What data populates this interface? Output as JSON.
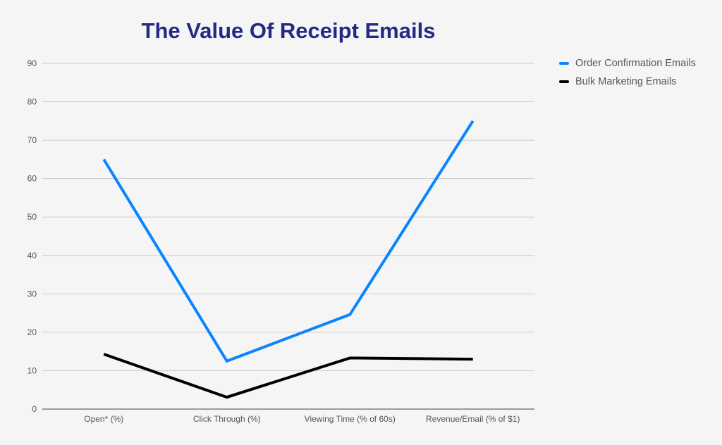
{
  "chart_data": {
    "type": "line",
    "title": "The Value Of Receipt Emails",
    "categories": [
      "Open* (%)",
      "Click Through (%)",
      "Viewing Time (% of 60s)",
      "Revenue/Email (% of $1)"
    ],
    "series": [
      {
        "name": "Order Confirmation Emails",
        "color": "#0a84ff",
        "values": [
          65,
          12.5,
          24.6,
          75
        ]
      },
      {
        "name": "Bulk Marketing Emails",
        "color": "#000000",
        "values": [
          14.3,
          3.1,
          13.3,
          13.0
        ]
      }
    ],
    "ylim": [
      0,
      90
    ],
    "yticks": [
      0,
      10,
      20,
      30,
      40,
      50,
      60,
      70,
      80,
      90
    ],
    "grid": true,
    "legend": "right"
  }
}
